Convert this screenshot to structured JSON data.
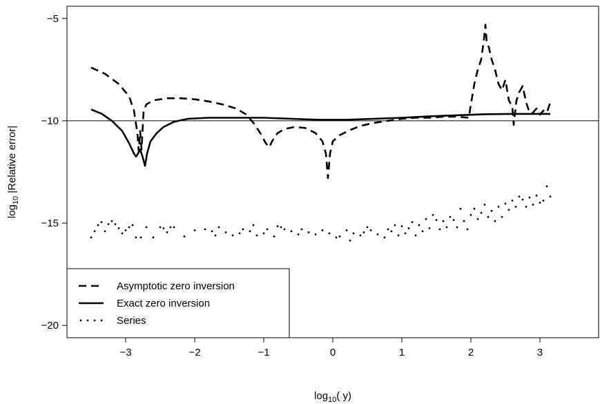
{
  "chart_data": {
    "type": "line",
    "xlabel_prefix": "log",
    "xlabel_sub": "10",
    "xlabel_suffix": "( y)",
    "ylabel_prefix": "log",
    "ylabel_sub": "10",
    "ylabel_suffix": " |Relative error|",
    "xlim": [
      -3.85,
      3.85
    ],
    "ylim": [
      -20.6,
      -4.4
    ],
    "x_ticks": [
      -3,
      -2,
      -1,
      0,
      1,
      2,
      3
    ],
    "x_tick_labels": [
      "−3",
      "−2",
      "−1",
      "0",
      "1",
      "2",
      "3"
    ],
    "y_ticks": [
      -20,
      -15,
      -10,
      -5
    ],
    "y_tick_labels": [
      "−20",
      "−15",
      "−10",
      "−5"
    ],
    "reference_line_y": -10,
    "legend_position": "bottom-left",
    "series": [
      {
        "name": "Asymptotic zero inversion",
        "style": "dashed",
        "points": [
          [
            -3.5,
            -7.4
          ],
          [
            -3.3,
            -7.7
          ],
          [
            -3.1,
            -8.2
          ],
          [
            -2.95,
            -8.8
          ],
          [
            -2.88,
            -9.5
          ],
          [
            -2.83,
            -10.6
          ],
          [
            -2.81,
            -11.5
          ],
          [
            -2.79,
            -10.5
          ],
          [
            -2.77,
            -11.4
          ],
          [
            -2.74,
            -9.5
          ],
          [
            -2.7,
            -9.2
          ],
          [
            -2.6,
            -9.0
          ],
          [
            -2.4,
            -8.9
          ],
          [
            -2.2,
            -8.9
          ],
          [
            -2.0,
            -8.95
          ],
          [
            -1.8,
            -9.05
          ],
          [
            -1.6,
            -9.2
          ],
          [
            -1.4,
            -9.4
          ],
          [
            -1.25,
            -9.7
          ],
          [
            -1.15,
            -10.1
          ],
          [
            -1.05,
            -10.6
          ],
          [
            -0.97,
            -11.1
          ],
          [
            -0.92,
            -11.3
          ],
          [
            -0.88,
            -11.0
          ],
          [
            -0.8,
            -10.6
          ],
          [
            -0.7,
            -10.4
          ],
          [
            -0.55,
            -10.3
          ],
          [
            -0.4,
            -10.35
          ],
          [
            -0.25,
            -10.6
          ],
          [
            -0.15,
            -11.0
          ],
          [
            -0.1,
            -11.6
          ],
          [
            -0.07,
            -12.8
          ],
          [
            -0.04,
            -11.6
          ],
          [
            0.0,
            -11.0
          ],
          [
            0.1,
            -10.7
          ],
          [
            0.25,
            -10.45
          ],
          [
            0.4,
            -10.25
          ],
          [
            0.6,
            -10.1
          ],
          [
            0.8,
            -10.0
          ],
          [
            1.0,
            -9.9
          ],
          [
            1.2,
            -9.85
          ],
          [
            1.4,
            -9.85
          ],
          [
            1.6,
            -9.8
          ],
          [
            1.8,
            -9.8
          ],
          [
            1.97,
            -9.85
          ],
          [
            2.0,
            -9.2
          ],
          [
            2.05,
            -8.2
          ],
          [
            2.1,
            -7.5
          ],
          [
            2.15,
            -7.0
          ],
          [
            2.19,
            -6.0
          ],
          [
            2.21,
            -5.3
          ],
          [
            2.23,
            -6.2
          ],
          [
            2.26,
            -6.4
          ],
          [
            2.3,
            -7.0
          ],
          [
            2.35,
            -7.5
          ],
          [
            2.4,
            -8.2
          ],
          [
            2.45,
            -8.5
          ],
          [
            2.5,
            -8.0
          ],
          [
            2.55,
            -9.0
          ],
          [
            2.6,
            -9.3
          ],
          [
            2.62,
            -10.2
          ],
          [
            2.66,
            -9.0
          ],
          [
            2.7,
            -8.6
          ],
          [
            2.75,
            -8.3
          ],
          [
            2.8,
            -9.1
          ],
          [
            2.85,
            -9.6
          ],
          [
            2.9,
            -9.6
          ],
          [
            2.95,
            -9.4
          ],
          [
            3.0,
            -9.7
          ],
          [
            3.05,
            -9.5
          ],
          [
            3.1,
            -9.6
          ],
          [
            3.15,
            -9.1
          ]
        ]
      },
      {
        "name": "Exact zero inversion",
        "style": "solid",
        "points": [
          [
            -3.5,
            -9.45
          ],
          [
            -3.35,
            -9.65
          ],
          [
            -3.2,
            -10.0
          ],
          [
            -3.05,
            -10.5
          ],
          [
            -2.95,
            -11.1
          ],
          [
            -2.88,
            -11.6
          ],
          [
            -2.85,
            -11.75
          ],
          [
            -2.82,
            -11.6
          ],
          [
            -2.79,
            -11.4
          ],
          [
            -2.76,
            -11.7
          ],
          [
            -2.72,
            -12.2
          ],
          [
            -2.69,
            -11.6
          ],
          [
            -2.64,
            -11.0
          ],
          [
            -2.55,
            -10.6
          ],
          [
            -2.45,
            -10.3
          ],
          [
            -2.3,
            -10.05
          ],
          [
            -2.1,
            -9.9
          ],
          [
            -1.8,
            -9.85
          ],
          [
            -1.4,
            -9.85
          ],
          [
            -1.0,
            -9.85
          ],
          [
            -0.6,
            -9.9
          ],
          [
            -0.2,
            -9.95
          ],
          [
            0.2,
            -9.95
          ],
          [
            0.6,
            -9.9
          ],
          [
            1.0,
            -9.85
          ],
          [
            1.4,
            -9.78
          ],
          [
            1.8,
            -9.73
          ],
          [
            2.2,
            -9.68
          ],
          [
            2.6,
            -9.66
          ],
          [
            3.0,
            -9.66
          ],
          [
            3.15,
            -9.66
          ]
        ]
      },
      {
        "name": "Series",
        "style": "dotted",
        "points": [
          [
            -3.5,
            -15.7
          ],
          [
            -3.45,
            -15.4
          ],
          [
            -3.4,
            -15.1
          ],
          [
            -3.35,
            -14.95
          ],
          [
            -3.3,
            -15.4
          ],
          [
            -3.25,
            -15.05
          ],
          [
            -3.2,
            -14.9
          ],
          [
            -3.15,
            -15.05
          ],
          [
            -3.1,
            -15.25
          ],
          [
            -3.05,
            -15.5
          ],
          [
            -3.0,
            -15.35
          ],
          [
            -2.95,
            -15.2
          ],
          [
            -2.9,
            -15.1
          ],
          [
            -2.85,
            -15.7
          ],
          [
            -2.78,
            -15.7
          ],
          [
            -2.7,
            -15.2
          ],
          [
            -2.6,
            -15.7
          ],
          [
            -2.5,
            -15.2
          ],
          [
            -2.45,
            -15.25
          ],
          [
            -2.4,
            -15.45
          ],
          [
            -2.35,
            -15.2
          ],
          [
            -2.3,
            -15.2
          ],
          [
            -2.15,
            -15.65
          ],
          [
            -2.0,
            -15.35
          ],
          [
            -1.85,
            -15.3
          ],
          [
            -1.75,
            -15.4
          ],
          [
            -1.7,
            -15.6
          ],
          [
            -1.65,
            -15.2
          ],
          [
            -1.55,
            -15.45
          ],
          [
            -1.45,
            -15.6
          ],
          [
            -1.35,
            -15.5
          ],
          [
            -1.3,
            -15.3
          ],
          [
            -1.2,
            -15.4
          ],
          [
            -1.15,
            -15.1
          ],
          [
            -1.1,
            -15.6
          ],
          [
            -1.0,
            -15.5
          ],
          [
            -0.95,
            -15.3
          ],
          [
            -0.85,
            -15.65
          ],
          [
            -0.8,
            -15.15
          ],
          [
            -0.75,
            -15.2
          ],
          [
            -0.7,
            -15.3
          ],
          [
            -0.6,
            -15.4
          ],
          [
            -0.5,
            -15.55
          ],
          [
            -0.45,
            -15.3
          ],
          [
            -0.35,
            -15.45
          ],
          [
            -0.25,
            -15.55
          ],
          [
            -0.15,
            -15.35
          ],
          [
            -0.05,
            -15.5
          ],
          [
            0.05,
            -15.7
          ],
          [
            0.1,
            -15.65
          ],
          [
            0.2,
            -15.35
          ],
          [
            0.25,
            -15.85
          ],
          [
            0.3,
            -15.5
          ],
          [
            0.4,
            -15.6
          ],
          [
            0.45,
            -15.45
          ],
          [
            0.5,
            -15.2
          ],
          [
            0.55,
            -15.35
          ],
          [
            0.65,
            -15.55
          ],
          [
            0.75,
            -15.7
          ],
          [
            0.8,
            -15.3
          ],
          [
            0.85,
            -15.4
          ],
          [
            0.9,
            -15.1
          ],
          [
            0.95,
            -15.6
          ],
          [
            1.0,
            -15.15
          ],
          [
            1.05,
            -15.5
          ],
          [
            1.1,
            -15.25
          ],
          [
            1.15,
            -14.95
          ],
          [
            1.2,
            -15.6
          ],
          [
            1.25,
            -15.1
          ],
          [
            1.3,
            -15.4
          ],
          [
            1.35,
            -14.8
          ],
          [
            1.4,
            -15.25
          ],
          [
            1.45,
            -14.6
          ],
          [
            1.5,
            -14.85
          ],
          [
            1.55,
            -15.3
          ],
          [
            1.6,
            -14.9
          ],
          [
            1.65,
            -15.2
          ],
          [
            1.7,
            -14.7
          ],
          [
            1.75,
            -14.85
          ],
          [
            1.8,
            -15.2
          ],
          [
            1.85,
            -14.3
          ],
          [
            1.9,
            -14.9
          ],
          [
            1.95,
            -15.3
          ],
          [
            2.0,
            -14.6
          ],
          [
            2.05,
            -14.3
          ],
          [
            2.1,
            -14.8
          ],
          [
            2.15,
            -14.5
          ],
          [
            2.2,
            -14.1
          ],
          [
            2.25,
            -14.7
          ],
          [
            2.3,
            -14.4
          ],
          [
            2.35,
            -14.9
          ],
          [
            2.4,
            -14.2
          ],
          [
            2.45,
            -14.7
          ],
          [
            2.5,
            -14.05
          ],
          [
            2.55,
            -14.35
          ],
          [
            2.6,
            -13.9
          ],
          [
            2.65,
            -14.2
          ],
          [
            2.7,
            -13.7
          ],
          [
            2.75,
            -13.85
          ],
          [
            2.8,
            -14.2
          ],
          [
            2.85,
            -13.75
          ],
          [
            2.9,
            -14.1
          ],
          [
            2.95,
            -13.65
          ],
          [
            3.0,
            -14.0
          ],
          [
            3.05,
            -13.9
          ],
          [
            3.1,
            -13.2
          ],
          [
            3.15,
            -13.7
          ]
        ]
      }
    ]
  }
}
